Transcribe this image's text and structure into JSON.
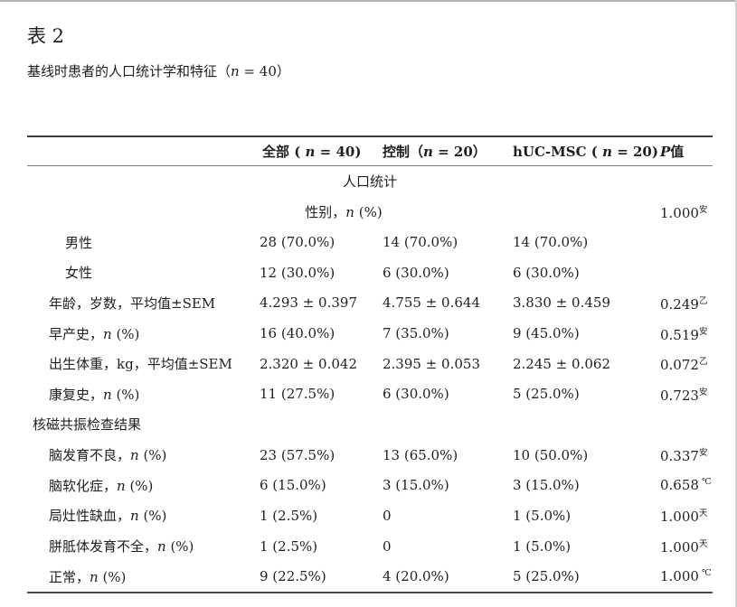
{
  "page": {
    "background": "#ffffff",
    "text_color": "#1f1f1f",
    "table_border_dark": "#3c3c3c",
    "table_border_mid": "#7d7d7d",
    "page_edge_color": "#b4b4b4"
  },
  "title": "表 2",
  "subtitle": "基线时患者的人口统计学和特征（n = 40）",
  "table": {
    "headers": {
      "label": "",
      "all": "全部 ( n = 40)",
      "control": "控制（n = 20）",
      "hucmsc": "hUC-MSC ( n = 20)",
      "pvalue": "P值"
    },
    "rows": [
      {
        "label": "人口统计"
      },
      {
        "label": "性别，n (%)",
        "p": "1.000",
        "sup": "安"
      },
      {
        "label": "男性",
        "c1": "28 (70.0%)",
        "c2": "14 (70.0%)",
        "c3": "14 (70.0%)",
        "p": "",
        "sup": ""
      },
      {
        "label": "女性",
        "c1": "12 (30.0%)",
        "c2": "6 (30.0%)",
        "c3": "6 (30.0%)",
        "p": "",
        "sup": ""
      },
      {
        "label": "年龄，岁数，平均值±SEM",
        "c1": "4.293 ± 0.397",
        "c2": "4.755 ± 0.644",
        "c3": "3.830 ± 0.459",
        "p": "0.249",
        "sup": "乙"
      },
      {
        "label": "早产史，n (%)",
        "c1": "16 (40.0%)",
        "c2": "7 (35.0%)",
        "c3": "9 (45.0%)",
        "p": "0.519",
        "sup": "安"
      },
      {
        "label": "出生体重，kg，平均值±SEM",
        "c1": "2.320 ± 0.042",
        "c2": "2.395 ± 0.053",
        "c3": "2.245 ± 0.062",
        "p": "0.072",
        "sup": "乙"
      },
      {
        "label": "康复史，n (%)",
        "c1": "11 (27.5%)",
        "c2": "6 (30.0%)",
        "c3": "5 (25.0%)",
        "p": "0.723",
        "sup": "安"
      },
      {
        "label": "核磁共振检查结果"
      },
      {
        "label": "脑发育不良，n (%)",
        "c1": "23 (57.5%)",
        "c2": "13 (65.0%)",
        "c3": "10 (50.0%)",
        "p": "0.337",
        "sup": "安"
      },
      {
        "label": "脑软化症，n (%)",
        "c1": "6 (15.0%)",
        "c2": "3 (15.0%)",
        "c3": "3 (15.0%)",
        "p": "0.658",
        "sup": " ℃"
      },
      {
        "label": "局灶性缺血，n (%)",
        "c1": "1 (2.5%)",
        "c2": "0",
        "c3": "1 (5.0%)",
        "p": "1.000",
        "sup": "天"
      },
      {
        "label": "胼胝体发育不全，n (%)",
        "c1": "1 (2.5%)",
        "c2": "0",
        "c3": "1 (5.0%)",
        "p": "1.000",
        "sup": "天"
      },
      {
        "label": "正常，n (%)",
        "c1": "9 (22.5%)",
        "c2": "4 (20.0%)",
        "c3": "5 (25.0%)",
        "p": "1.000",
        "sup": " ℃"
      }
    ]
  }
}
